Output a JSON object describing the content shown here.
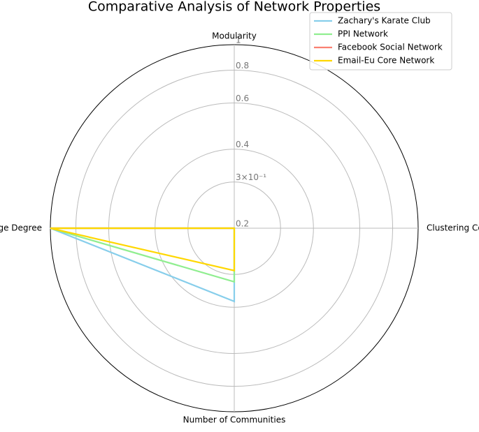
{
  "chart_data": {
    "type": "radar",
    "title": "Comparative Analysis of Network Properties",
    "categories": [
      "Modularity",
      "Average Degree",
      "Number of Communities",
      "Clustering Coefficient"
    ],
    "series": [
      {
        "name": "Zachary's Karate Club",
        "color": "#87ceeb",
        "values": [
          0.2,
          1.0,
          0.38,
          0.2
        ]
      },
      {
        "name": "PPI Network",
        "color": "#90ee90",
        "values": [
          0.2,
          1.0,
          0.32,
          0.2
        ]
      },
      {
        "name": "Facebook Social Network",
        "color": "#fa8072",
        "values": [
          0.2,
          1.0,
          0.2,
          0.2
        ]
      },
      {
        "name": "Email-Eu Core Network",
        "color": "#ffd700",
        "values": [
          0.2,
          1.0,
          0.29,
          0.2
        ]
      }
    ],
    "ylim": [
      0.2,
      1.0
    ],
    "yticks": [
      0.2,
      {
        "value": 0.3,
        "label": "3×10⁻¹"
      },
      0.4,
      0.6,
      0.8,
      1.0
    ],
    "log_scale": true,
    "grid": true,
    "legend": "upper right"
  }
}
